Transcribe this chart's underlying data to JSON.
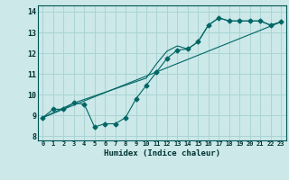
{
  "title": "",
  "xlabel": "Humidex (Indice chaleur)",
  "xlim": [
    -0.5,
    23.5
  ],
  "ylim": [
    7.8,
    14.3
  ],
  "yticks": [
    8,
    9,
    10,
    11,
    12,
    13,
    14
  ],
  "xticks": [
    0,
    1,
    2,
    3,
    4,
    5,
    6,
    7,
    8,
    9,
    10,
    11,
    12,
    13,
    14,
    15,
    16,
    17,
    18,
    19,
    20,
    21,
    22,
    23
  ],
  "bg_color": "#cce8e8",
  "grid_color": "#aad4d4",
  "line_color": "#006666",
  "line1_x": [
    0,
    1,
    2,
    3,
    4,
    5,
    6,
    7,
    8,
    9,
    10,
    11,
    12,
    13,
    14,
    15,
    16,
    17,
    18,
    19,
    20,
    21,
    22,
    23
  ],
  "line1_y": [
    8.9,
    9.3,
    9.3,
    9.6,
    9.55,
    8.45,
    8.6,
    8.6,
    8.9,
    9.8,
    10.45,
    11.1,
    11.75,
    12.15,
    12.2,
    12.55,
    13.35,
    13.7,
    13.55,
    13.55,
    13.55,
    13.55,
    13.35,
    13.5
  ],
  "line2_x": [
    0,
    3,
    10,
    11,
    12,
    13,
    14,
    15,
    16,
    17,
    18,
    19,
    20,
    21,
    22,
    23
  ],
  "line2_y": [
    8.9,
    9.6,
    10.8,
    11.5,
    12.1,
    12.35,
    12.2,
    12.55,
    13.35,
    13.7,
    13.55,
    13.55,
    13.55,
    13.55,
    13.35,
    13.5
  ],
  "line3_x": [
    0,
    23
  ],
  "line3_y": [
    8.9,
    13.5
  ]
}
